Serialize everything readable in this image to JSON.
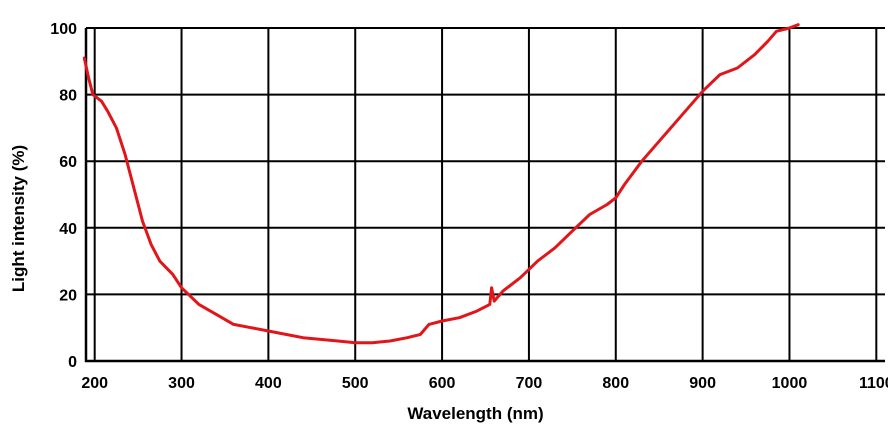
{
  "chart_data": {
    "type": "line",
    "title": "",
    "xlabel": "Wavelength (nm)",
    "ylabel": "Light intensity (%)",
    "xlim": [
      190,
      1110
    ],
    "ylim": [
      0,
      100
    ],
    "x_ticks": [
      200,
      300,
      400,
      500,
      600,
      700,
      800,
      900,
      1000,
      1100
    ],
    "y_ticks": [
      0,
      20,
      40,
      60,
      80,
      100
    ],
    "x_tick_labels": [
      "200",
      "300",
      "400",
      "500",
      "600",
      "700",
      "800",
      "900",
      "1000",
      "1100"
    ],
    "y_tick_labels": [
      "0",
      "20",
      "40",
      "60",
      "80",
      "100"
    ],
    "grid": true,
    "line_color": "#e0161b",
    "series": [
      {
        "x": [
          188,
          193,
          198,
          203,
          208,
          215,
          225,
          235,
          245,
          255,
          265,
          275,
          290,
          300,
          320,
          340,
          360,
          380,
          400,
          420,
          440,
          460,
          480,
          500,
          520,
          540,
          560,
          575,
          585,
          600,
          620,
          640,
          655,
          657,
          660,
          670,
          690,
          710,
          730,
          750,
          770,
          790,
          800,
          810,
          830,
          850,
          870,
          890,
          900,
          920,
          940,
          960,
          975,
          985,
          1000,
          1010
        ],
        "y": [
          91,
          85,
          80,
          79,
          78,
          75,
          70,
          62,
          52,
          42,
          35,
          30,
          26,
          22,
          17,
          14,
          11,
          10,
          9,
          8,
          7,
          6.5,
          6,
          5.5,
          5.5,
          6,
          7,
          8,
          11,
          12,
          13,
          15,
          17,
          22,
          18,
          21,
          25,
          30,
          34,
          39,
          44,
          47,
          49,
          53,
          60,
          66,
          72,
          78,
          81,
          86,
          88,
          92,
          96,
          99,
          100,
          101
        ]
      }
    ]
  }
}
